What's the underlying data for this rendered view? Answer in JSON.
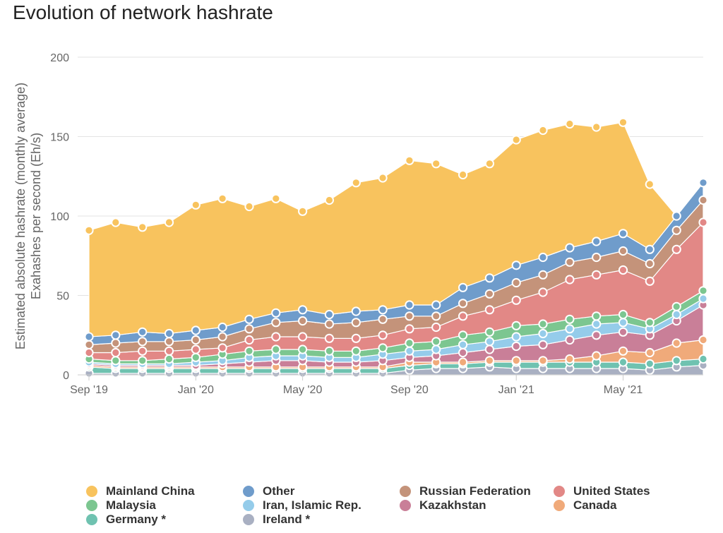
{
  "title": "Evolution of network hashrate",
  "chart_data": {
    "type": "area",
    "stacked": true,
    "title": "Evolution of network hashrate",
    "ylabel_line1": "Estimated absolute hashrate (monthly average)",
    "ylabel_line2": "Exahashes per second (Eh/s)",
    "xlabel": "",
    "ylim": [
      0,
      200
    ],
    "yticks": [
      0,
      50,
      100,
      150,
      200
    ],
    "grid": true,
    "legend_position": "bottom",
    "x": [
      "Sep '19",
      "Oct '19",
      "Nov '19",
      "Dec '19",
      "Jan '20",
      "Feb '20",
      "Mar '20",
      "Apr '20",
      "May '20",
      "Jun '20",
      "Jul '20",
      "Aug '20",
      "Sep '20",
      "Oct '20",
      "Nov '20",
      "Dec '20",
      "Jan '21",
      "Feb '21",
      "Mar '21",
      "Apr '21",
      "May '21",
      "Jun '21",
      "Jul '21",
      "Aug '21"
    ],
    "xtick_labels": [
      {
        "index": 0,
        "label": "Sep '19"
      },
      {
        "index": 4,
        "label": "Jan '20"
      },
      {
        "index": 8,
        "label": "May '20"
      },
      {
        "index": 12,
        "label": "Sep '20"
      },
      {
        "index": 16,
        "label": "Jan '21"
      },
      {
        "index": 20,
        "label": "May '21"
      }
    ],
    "series": [
      {
        "name": "Ireland *",
        "color": "#a9b0c2",
        "values": [
          1,
          1,
          1,
          1,
          1,
          1,
          1,
          1,
          1,
          1,
          1,
          1,
          3,
          4,
          4,
          5,
          4,
          4,
          4,
          4,
          4,
          3,
          5,
          6
        ]
      },
      {
        "name": "Germany *",
        "color": "#6fc2b0",
        "values": [
          4,
          3,
          3,
          3,
          3,
          3,
          3,
          3,
          3,
          3,
          3,
          3,
          3,
          3,
          3,
          3,
          4,
          4,
          4,
          4,
          4,
          4,
          4,
          4
        ]
      },
      {
        "name": "Canada",
        "color": "#f0aa7a",
        "values": [
          1,
          1,
          1,
          1,
          1,
          1,
          1,
          1,
          1,
          1,
          1,
          1,
          2,
          1,
          1,
          1,
          1,
          1,
          2,
          4,
          7,
          7,
          11,
          12
        ]
      },
      {
        "name": "Kazakhstan",
        "color": "#c97f98",
        "values": [
          1,
          1,
          1,
          1,
          1,
          2,
          3,
          4,
          4,
          3,
          3,
          4,
          3,
          4,
          6,
          7,
          9,
          10,
          12,
          13,
          12,
          11,
          14,
          22
        ]
      },
      {
        "name": "Iran, Islamic Rep.",
        "color": "#95ccea",
        "values": [
          1,
          1,
          1,
          1,
          2,
          2,
          3,
          3,
          3,
          3,
          3,
          4,
          4,
          4,
          5,
          5,
          6,
          7,
          7,
          7,
          6,
          4,
          4,
          4
        ]
      },
      {
        "name": "Malaysia",
        "color": "#7cc690",
        "values": [
          2,
          2,
          2,
          3,
          3,
          4,
          4,
          4,
          4,
          4,
          4,
          4,
          5,
          5,
          6,
          6,
          7,
          6,
          6,
          5,
          5,
          4,
          5,
          5
        ]
      },
      {
        "name": "United States",
        "color": "#e28886",
        "values": [
          4,
          5,
          6,
          5,
          5,
          4,
          7,
          8,
          8,
          8,
          8,
          8,
          9,
          9,
          12,
          14,
          16,
          20,
          25,
          26,
          28,
          26,
          36,
          43
        ]
      },
      {
        "name": "Russian Federation",
        "color": "#c4937a",
        "values": [
          5,
          6,
          6,
          6,
          6,
          7,
          7,
          9,
          10,
          9,
          10,
          10,
          8,
          7,
          8,
          10,
          11,
          11,
          11,
          11,
          12,
          11,
          12,
          14
        ]
      },
      {
        "name": "Other",
        "color": "#6f9ccb",
        "values": [
          5,
          5,
          6,
          5,
          6,
          6,
          6,
          6,
          7,
          6,
          7,
          6,
          7,
          7,
          10,
          10,
          11,
          11,
          9,
          10,
          11,
          9,
          9,
          11
        ]
      },
      {
        "name": "Mainland China",
        "color": "#f8c35e",
        "values": [
          67,
          71,
          66,
          70,
          79,
          81,
          71,
          72,
          62,
          72,
          81,
          83,
          91,
          89,
          71,
          72,
          79,
          80,
          78,
          72,
          70,
          41,
          0,
          0
        ]
      }
    ]
  }
}
